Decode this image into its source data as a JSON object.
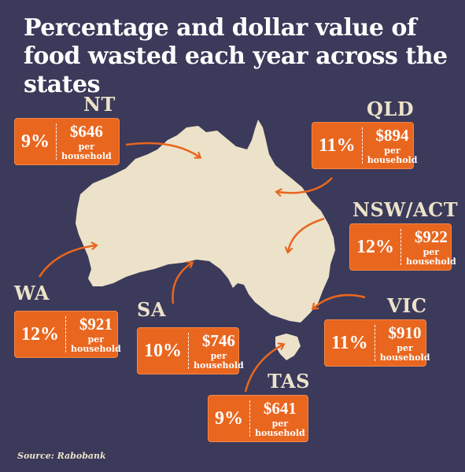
{
  "title": "Percentage and dollar value of food wasted each year across the states",
  "source": "Source: Rabobank",
  "colors": {
    "background": "#3b3a5a",
    "map": "#ece2c9",
    "accent": "#e9661f"
  },
  "states": {
    "nt": {
      "name": "NT",
      "percent": "9%",
      "amount": "$646",
      "per": "per",
      "unit": "household"
    },
    "qld": {
      "name": "QLD",
      "percent": "11%",
      "amount": "$894",
      "per": "per",
      "unit": "household"
    },
    "nsw": {
      "name": "NSW/ACT",
      "percent": "12%",
      "amount": "$922",
      "per": "per",
      "unit": "household"
    },
    "wa": {
      "name": "WA",
      "percent": "12%",
      "amount": "$921",
      "per": "per",
      "unit": "household"
    },
    "sa": {
      "name": "SA",
      "percent": "10%",
      "amount": "$746",
      "per": "per",
      "unit": "household"
    },
    "vic": {
      "name": "VIC",
      "percent": "11%",
      "amount": "$910",
      "per": "per",
      "unit": "household"
    },
    "tas": {
      "name": "TAS",
      "percent": "9%",
      "amount": "$641",
      "per": "per",
      "unit": "household"
    }
  }
}
